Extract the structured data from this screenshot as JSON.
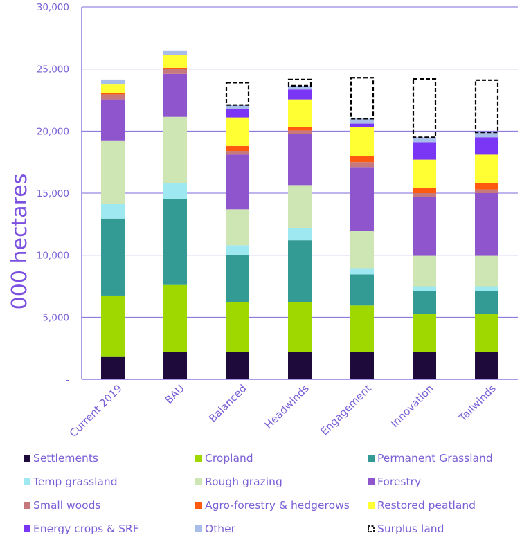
{
  "chart_data": {
    "type": "bar",
    "stacked": true,
    "ylabel": "000 hectares",
    "ylim": [
      0,
      30000
    ],
    "yticks": [
      {
        "value": 0,
        "label": "-"
      },
      {
        "value": 5000,
        "label": "5,000"
      },
      {
        "value": 10000,
        "label": "10,000"
      },
      {
        "value": 15000,
        "label": "15,000"
      },
      {
        "value": 20000,
        "label": "20,000"
      },
      {
        "value": 25000,
        "label": "25,000"
      },
      {
        "value": 30000,
        "label": "30,000"
      }
    ],
    "grid": true,
    "legend_position": "bottom",
    "categories": [
      "Current 2019",
      "BAU",
      "Balanced",
      "Headwinds",
      "Engagement",
      "Innovation",
      "Tailwinds"
    ],
    "series": [
      {
        "name": "Settlements",
        "color": "#1f0a3c",
        "values": [
          1800,
          2200,
          2200,
          2200,
          2200,
          2200,
          2200
        ]
      },
      {
        "name": "Cropland",
        "color": "#9ed800",
        "values": [
          4950,
          5400,
          4000,
          4000,
          3750,
          3050,
          3050
        ]
      },
      {
        "name": "Permanent Grassland",
        "color": "#339b94",
        "values": [
          6200,
          6900,
          3800,
          5000,
          2500,
          1850,
          1850
        ]
      },
      {
        "name": "Temp grassland",
        "color": "#9ee8f2",
        "values": [
          1200,
          1300,
          800,
          1000,
          500,
          400,
          400
        ]
      },
      {
        "name": "Rough grazing",
        "color": "#cde6b4",
        "values": [
          5100,
          5350,
          2900,
          3450,
          3000,
          2450,
          2450
        ]
      },
      {
        "name": "Forestry",
        "color": "#8f55cc",
        "values": [
          3300,
          3450,
          4400,
          4100,
          5150,
          4750,
          5050
        ]
      },
      {
        "name": "Small woods",
        "color": "#c7787c",
        "values": [
          400,
          400,
          300,
          300,
          400,
          300,
          300
        ]
      },
      {
        "name": "Agro-forestry & hedgerows",
        "color": "#ff5a10",
        "values": [
          100,
          100,
          400,
          300,
          500,
          400,
          500
        ]
      },
      {
        "name": "Restored peatland",
        "color": "#ffff33",
        "values": [
          700,
          1000,
          2300,
          2200,
          2300,
          2300,
          2300
        ]
      },
      {
        "name": "Energy crops & SRF",
        "color": "#7a35f5",
        "values": [
          0,
          0,
          700,
          800,
          300,
          1400,
          1400
        ]
      },
      {
        "name": "Other",
        "color": "#a9bdea",
        "values": [
          400,
          400,
          300,
          300,
          400,
          400,
          400
        ]
      }
    ],
    "surplus": {
      "name": "Surplus land",
      "values": [
        0,
        0,
        1800,
        500,
        3300,
        4700,
        4200
      ]
    }
  }
}
